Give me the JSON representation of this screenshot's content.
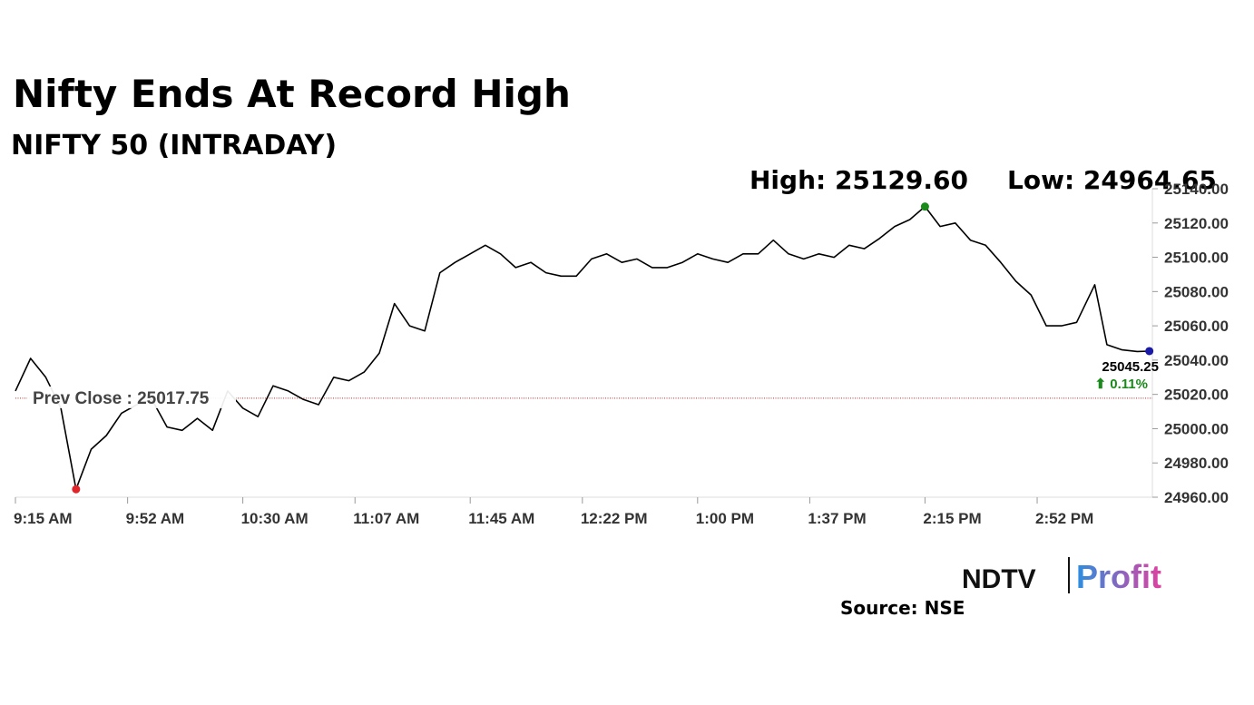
{
  "chart_data": {
    "type": "line",
    "title": "Nifty Ends At Record High",
    "subtitle": "NIFTY 50 (INTRADAY)",
    "high_label": "High: 25129.60",
    "low_label": "Low: 24964.65",
    "x": [
      "9:15 AM",
      "9:20 AM",
      "9:25 AM",
      "9:30 AM",
      "9:35 AM",
      "9:40 AM",
      "9:45 AM",
      "9:50 AM",
      "9:55 AM",
      "10:00 AM",
      "10:05 AM",
      "10:10 AM",
      "10:15 AM",
      "10:20 AM",
      "10:25 AM",
      "10:30 AM",
      "10:35 AM",
      "10:40 AM",
      "10:45 AM",
      "10:50 AM",
      "10:55 AM",
      "11:00 AM",
      "11:05 AM",
      "11:10 AM",
      "11:15 AM",
      "11:20 AM",
      "11:25 AM",
      "11:30 AM",
      "11:35 AM",
      "11:40 AM",
      "11:45 AM",
      "11:50 AM",
      "11:55 AM",
      "12:00 PM",
      "12:05 PM",
      "12:10 PM",
      "12:15 PM",
      "12:20 PM",
      "12:25 PM",
      "12:30 PM",
      "12:35 PM",
      "12:40 PM",
      "12:45 PM",
      "12:50 PM",
      "12:55 PM",
      "1:00 PM",
      "1:05 PM",
      "1:10 PM",
      "1:15 PM",
      "1:20 PM",
      "1:25 PM",
      "1:30 PM",
      "1:35 PM",
      "1:40 PM",
      "1:45 PM",
      "1:50 PM",
      "1:55 PM",
      "2:00 PM",
      "2:05 PM",
      "2:10 PM",
      "2:15 PM",
      "2:20 PM",
      "2:25 PM",
      "2:30 PM",
      "2:35 PM",
      "2:40 PM",
      "2:45 PM",
      "2:50 PM",
      "2:55 PM",
      "3:00 PM",
      "3:05 PM",
      "3:11 PM",
      "3:15 PM",
      "3:20 PM",
      "3:25 PM",
      "3:29 PM"
    ],
    "series": [
      {
        "name": "NIFTY 50",
        "color": "#000000",
        "values": [
          25022,
          25041,
          25030,
          25012,
          24964.65,
          24988,
          24996,
          25009,
          25014,
          25017,
          25001,
          24999,
          25006,
          24999,
          25022,
          25012,
          25007,
          25025,
          25022,
          25017,
          25014,
          25030,
          25028,
          25033,
          25044,
          25073,
          25060,
          25057,
          25091,
          25097,
          25102,
          25107,
          25102,
          25094,
          25097,
          25091,
          25089,
          25089,
          25099,
          25102,
          25097,
          25099,
          25094,
          25094,
          25097,
          25102,
          25099,
          25097,
          25102,
          25102,
          25110,
          25102,
          25099,
          25102,
          25100,
          25107,
          25105,
          25111,
          25118,
          25122,
          25129.6,
          25118,
          25120,
          25110,
          25107,
          25097,
          25086,
          25078,
          25060,
          25060,
          25062,
          25084,
          25049,
          25046,
          25045,
          25045.25
        ]
      }
    ],
    "xlim": [
      "9:15 AM",
      "3:30 PM"
    ],
    "xticks": [
      "9:15 AM",
      "9:52 AM",
      "10:30 AM",
      "11:07 AM",
      "11:45 AM",
      "12:22 PM",
      "1:00 PM",
      "1:37 PM",
      "2:15 PM",
      "2:52 PM"
    ],
    "ylim": [
      24960,
      25140
    ],
    "yticks": [
      {
        "value": 24960,
        "label": "24960.00"
      },
      {
        "value": 24980,
        "label": "24980.00"
      },
      {
        "value": 25000,
        "label": "25000.00"
      },
      {
        "value": 25020,
        "label": "25020.00"
      },
      {
        "value": 25040,
        "label": "25040.00"
      },
      {
        "value": 25060,
        "label": "25060.00"
      },
      {
        "value": 25080,
        "label": "25080.00"
      },
      {
        "value": 25100,
        "label": "25100.00"
      },
      {
        "value": 25120,
        "label": "25120.00"
      },
      {
        "value": 25140,
        "label": "25140.00"
      }
    ],
    "prev_close": {
      "value": 25017.75,
      "label": "Prev Close : 25017.75",
      "color": "#b03030"
    },
    "last": {
      "value": 25045.25,
      "label": "25045.25",
      "change_label": "⬆ 0.11%",
      "change_color": "#1a8a1a"
    },
    "high_color": "#1a8a1a",
    "low_color": "#e0262a",
    "last_color": "#1a1aa8",
    "grid": false,
    "logo": {
      "brand": "NDTV",
      "name": "Profit"
    },
    "source": "Source: NSE"
  }
}
